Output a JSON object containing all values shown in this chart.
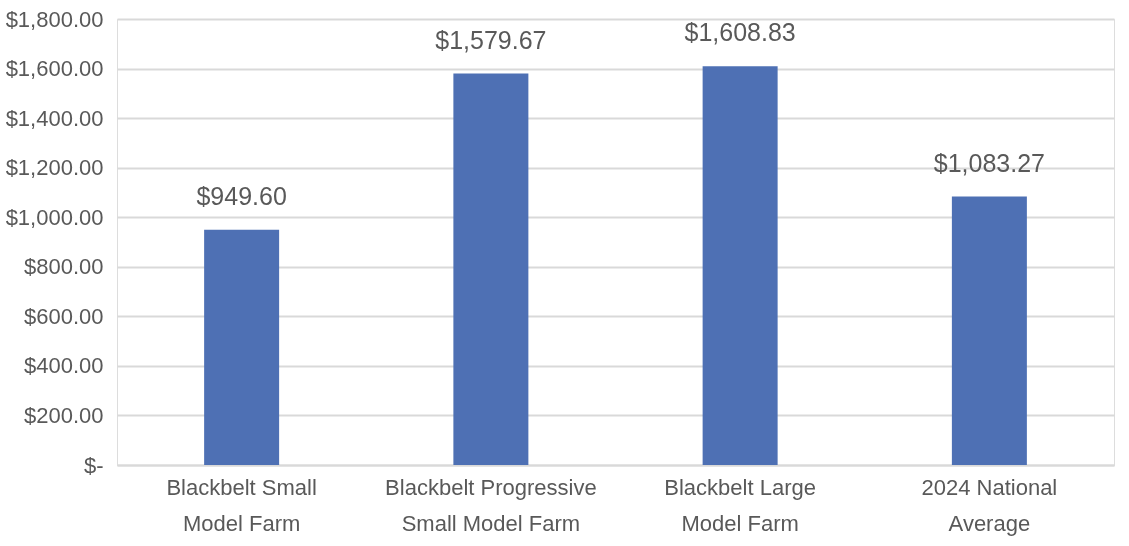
{
  "chart_data": {
    "type": "bar",
    "categories": [
      "Blackbelt Small\nModel Farm",
      "Blackbelt Progressive\nSmall Model Farm",
      "Blackbelt Large\nModel Farm",
      "2024 National\nAverage"
    ],
    "values": [
      949.6,
      1579.67,
      1608.83,
      1083.27
    ],
    "value_labels": [
      "$949.60",
      "$1,579.67",
      "$1,608.83",
      "$1,083.27"
    ],
    "color": "#4e70b4",
    "ylim": [
      0,
      1800
    ],
    "yticks": [
      {
        "value": 0,
        "label": "$-"
      },
      {
        "value": 200,
        "label": "$200.00"
      },
      {
        "value": 400,
        "label": "$400.00"
      },
      {
        "value": 600,
        "label": "$600.00"
      },
      {
        "value": 800,
        "label": "$800.00"
      },
      {
        "value": 1000,
        "label": "$1,000.00"
      },
      {
        "value": 1200,
        "label": "$1,200.00"
      },
      {
        "value": 1400,
        "label": "$1,400.00"
      },
      {
        "value": 1600,
        "label": "$1,600.00"
      },
      {
        "value": 1800,
        "label": "$1,800.00"
      }
    ],
    "grid": "y"
  }
}
